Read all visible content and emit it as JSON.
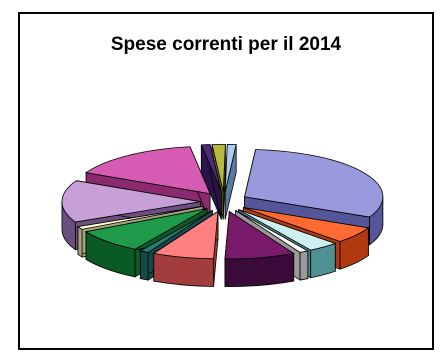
{
  "chart_data": {
    "type": "pie",
    "title": "Spese correnti per il 2014",
    "style": "3d-exploded",
    "legend": "none",
    "data_labels": "none",
    "slices": [
      {
        "value": 30.0,
        "color": "#9999dd",
        "side": "#55559a"
      },
      {
        "value": 5.5,
        "color": "#ff6a33",
        "side": "#b03a10"
      },
      {
        "value": 3.5,
        "color": "#cdeff2",
        "side": "#4f9090"
      },
      {
        "value": 1.0,
        "color": "#ffffff",
        "side": "#9a9a9a"
      },
      {
        "value": 8.0,
        "color": "#7a1a6a",
        "side": "#3a0a38"
      },
      {
        "value": 7.0,
        "color": "#ff8080",
        "side": "#a33d3d"
      },
      {
        "value": 1.0,
        "color": "#2a7a78",
        "side": "#114a48"
      },
      {
        "value": 8.0,
        "color": "#1d9a4a",
        "side": "#0a5a25"
      },
      {
        "value": 1.0,
        "color": "#ffffcc",
        "side": "#a3a380"
      },
      {
        "value": 14.0,
        "color": "#c8a0d8",
        "side": "#6c4f80"
      },
      {
        "value": 15.0,
        "color": "#d65cb3",
        "side": "#8b2a6e"
      },
      {
        "value": 1.0,
        "color": "#4a2a7a",
        "side": "#2a1448"
      },
      {
        "value": 1.5,
        "color": "#b8b840",
        "side": "#6e6e18"
      },
      {
        "value": 1.0,
        "color": "#aaccee",
        "side": "#5a7a9a"
      }
    ]
  }
}
